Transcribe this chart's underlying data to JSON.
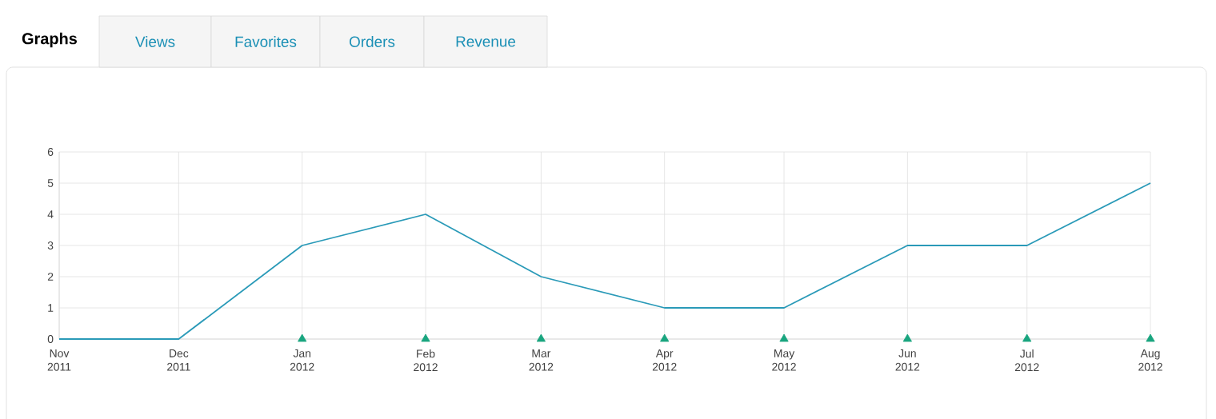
{
  "chart_data": {
    "type": "line",
    "title": "Graphs",
    "annotations": [
      "Views",
      "Favorites",
      "Orders",
      "Revenue"
    ],
    "x": [
      "2011-11",
      "2011-12",
      "2012-01",
      "2012-02",
      "2012-03",
      "2012-04",
      "2012-05",
      "2012-06",
      "2012-07",
      "2012-08"
    ],
    "series": [
      {
        "color": "#2a9ab8",
        "values": [
          0,
          0,
          3,
          4,
          2,
          1,
          1,
          3,
          3,
          5
        ]
      },
      {
        "type": "scatter",
        "marker": "triangle",
        "color": "#19a57f",
        "x": [
          "2012-01",
          "2012-02",
          "2012-03",
          "2012-04",
          "2012-05",
          "2012-06",
          "2012-07",
          "2012-08"
        ],
        "values": [
          0,
          0,
          0,
          0,
          0,
          0,
          0,
          0
        ]
      }
    ],
    "xlim": [
      "2011-11",
      "2012-08"
    ],
    "xticks": [
      {
        "value": "2011-11",
        "label": "Nov 2011"
      },
      {
        "value": "2011-12",
        "label": "Dec 2011"
      },
      {
        "value": "2012-01",
        "label": "Jan 2012"
      },
      {
        "value": "2012-02",
        "label": "Feb 2012"
      },
      {
        "value": "2012-03",
        "label": "Mar 2012"
      },
      {
        "value": "2012-04",
        "label": "Apr 2012"
      },
      {
        "value": "2012-05",
        "label": "May 2012"
      },
      {
        "value": "2012-06",
        "label": "Jun 2012"
      },
      {
        "value": "2012-07",
        "label": "Jul 2012"
      },
      {
        "value": "2012-08",
        "label": "Aug 2012"
      }
    ],
    "ylim": [
      0,
      6
    ],
    "yticks": [
      0,
      1,
      2,
      3,
      4,
      5,
      6
    ],
    "grid": true,
    "marker": "none",
    "line_style": "solid"
  }
}
